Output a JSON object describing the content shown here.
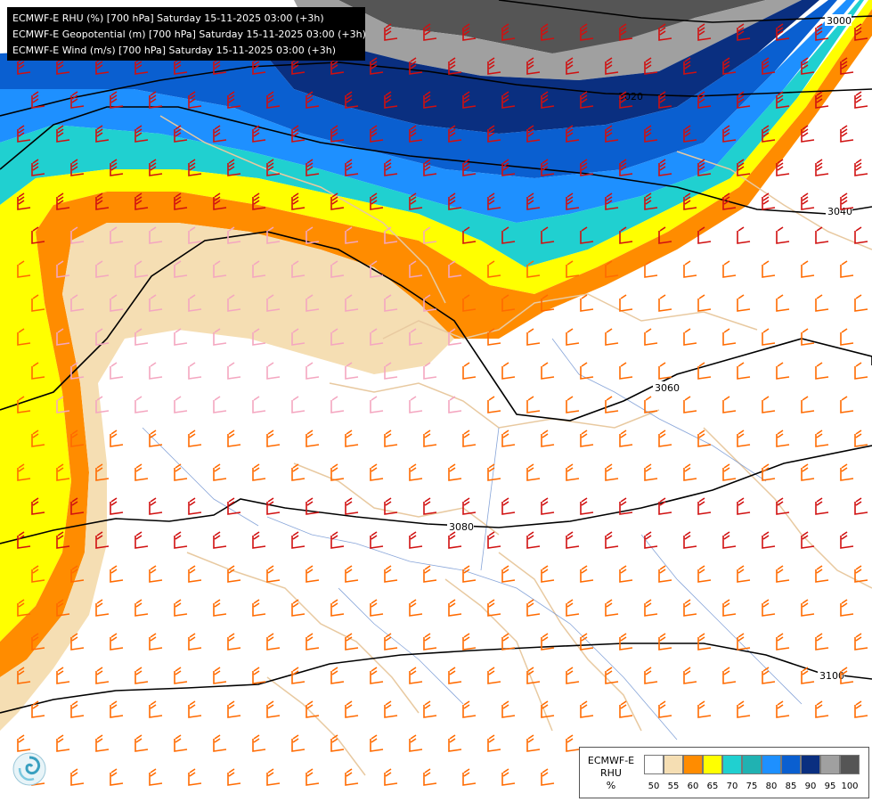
{
  "header": {
    "lines": [
      "ECMWF-E RHU (%) [700 hPa] Saturday 15-11-2025 03:00 (+3h)",
      "ECMWF-E Geopotential (m) [700 hPa] Saturday 15-11-2025 03:00 (+3h)",
      "ECMWF-E Wind (m/s) [700 hPa] Saturday 15-11-2025 03:00 (+3h)"
    ]
  },
  "contours": [
    {
      "label": "3000"
    },
    {
      "label": "3020"
    },
    {
      "label": "3040"
    },
    {
      "label": "3060"
    },
    {
      "label": "3080"
    },
    {
      "label": "3100"
    }
  ],
  "legend": {
    "title_line1": "ECMWF-E",
    "title_line2": "RHU",
    "unit": "%",
    "levels": [
      "50",
      "55",
      "60",
      "65",
      "70",
      "75",
      "80",
      "85",
      "90",
      "95",
      "100"
    ],
    "colors": [
      "#ffffff",
      "#f5deb3",
      "#ff8c00",
      "#ffff00",
      "#20d0d0",
      "#20b2b2",
      "#1e90ff",
      "#0a5fd0",
      "#0a2f80",
      "#a0a0a0",
      "#555555"
    ]
  },
  "colors": {
    "wind_strong": "#d01010",
    "wind_mid": "#ff6a00",
    "wind_weak": "#f4a6c0",
    "contour": "#000000",
    "border": "#e8c9a0",
    "river": "#6a8fd0"
  }
}
